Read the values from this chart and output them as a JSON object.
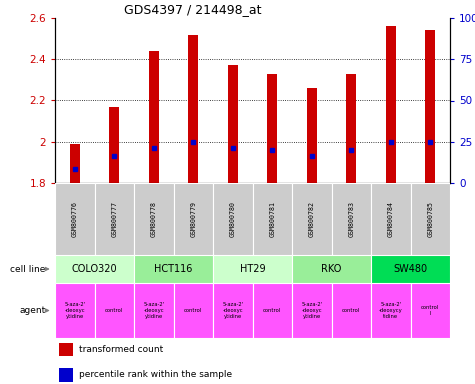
{
  "title": "GDS4397 / 214498_at",
  "samples": [
    "GSM800776",
    "GSM800777",
    "GSM800778",
    "GSM800779",
    "GSM800780",
    "GSM800781",
    "GSM800782",
    "GSM800783",
    "GSM800784",
    "GSM800785"
  ],
  "transformed_counts": [
    1.99,
    2.17,
    2.44,
    2.52,
    2.37,
    2.33,
    2.26,
    2.33,
    2.56,
    2.54
  ],
  "percentile_rank_values": [
    1.87,
    1.93,
    1.97,
    2.0,
    1.97,
    1.96,
    1.93,
    1.96,
    2.0,
    2.0
  ],
  "ylim": [
    1.8,
    2.6
  ],
  "yticks": [
    1.8,
    2.0,
    2.2,
    2.4,
    2.6
  ],
  "y2ticks": [
    0,
    25,
    50,
    75,
    100
  ],
  "bar_color": "#cc0000",
  "dot_color": "#0000cc",
  "bar_bottom": 1.8,
  "cell_lines": [
    {
      "name": "COLO320",
      "start": 0,
      "end": 2,
      "color": "#ccffcc"
    },
    {
      "name": "HCT116",
      "start": 2,
      "end": 4,
      "color": "#99ee99"
    },
    {
      "name": "HT29",
      "start": 4,
      "end": 6,
      "color": "#ccffcc"
    },
    {
      "name": "RKO",
      "start": 6,
      "end": 8,
      "color": "#99ee99"
    },
    {
      "name": "SW480",
      "start": 8,
      "end": 10,
      "color": "#00dd55"
    }
  ],
  "agents": [
    {
      "name": "5-aza-2'\n-deoxyc\nytidine",
      "start": 0,
      "end": 1,
      "color": "#ff55ff"
    },
    {
      "name": "control",
      "start": 1,
      "end": 2,
      "color": "#ff55ff"
    },
    {
      "name": "5-aza-2'\n-deoxyc\nytidine",
      "start": 2,
      "end": 3,
      "color": "#ff55ff"
    },
    {
      "name": "control",
      "start": 3,
      "end": 4,
      "color": "#ff55ff"
    },
    {
      "name": "5-aza-2'\n-deoxyc\nytidine",
      "start": 4,
      "end": 5,
      "color": "#ff55ff"
    },
    {
      "name": "control",
      "start": 5,
      "end": 6,
      "color": "#ff55ff"
    },
    {
      "name": "5-aza-2'\n-deoxyc\nytidine",
      "start": 6,
      "end": 7,
      "color": "#ff55ff"
    },
    {
      "name": "control",
      "start": 7,
      "end": 8,
      "color": "#ff55ff"
    },
    {
      "name": "5-aza-2'\n-deoxycy\ntidine",
      "start": 8,
      "end": 9,
      "color": "#ff55ff"
    },
    {
      "name": "control\nl",
      "start": 9,
      "end": 10,
      "color": "#ff55ff"
    }
  ],
  "legend_items": [
    {
      "label": "transformed count",
      "color": "#cc0000"
    },
    {
      "label": "percentile rank within the sample",
      "color": "#0000cc"
    }
  ],
  "sample_bg_color": "#cccccc",
  "ylabel_color": "#cc0000",
  "y2label_color": "#0000cc",
  "grid_yticks": [
    2.0,
    2.2,
    2.4
  ]
}
